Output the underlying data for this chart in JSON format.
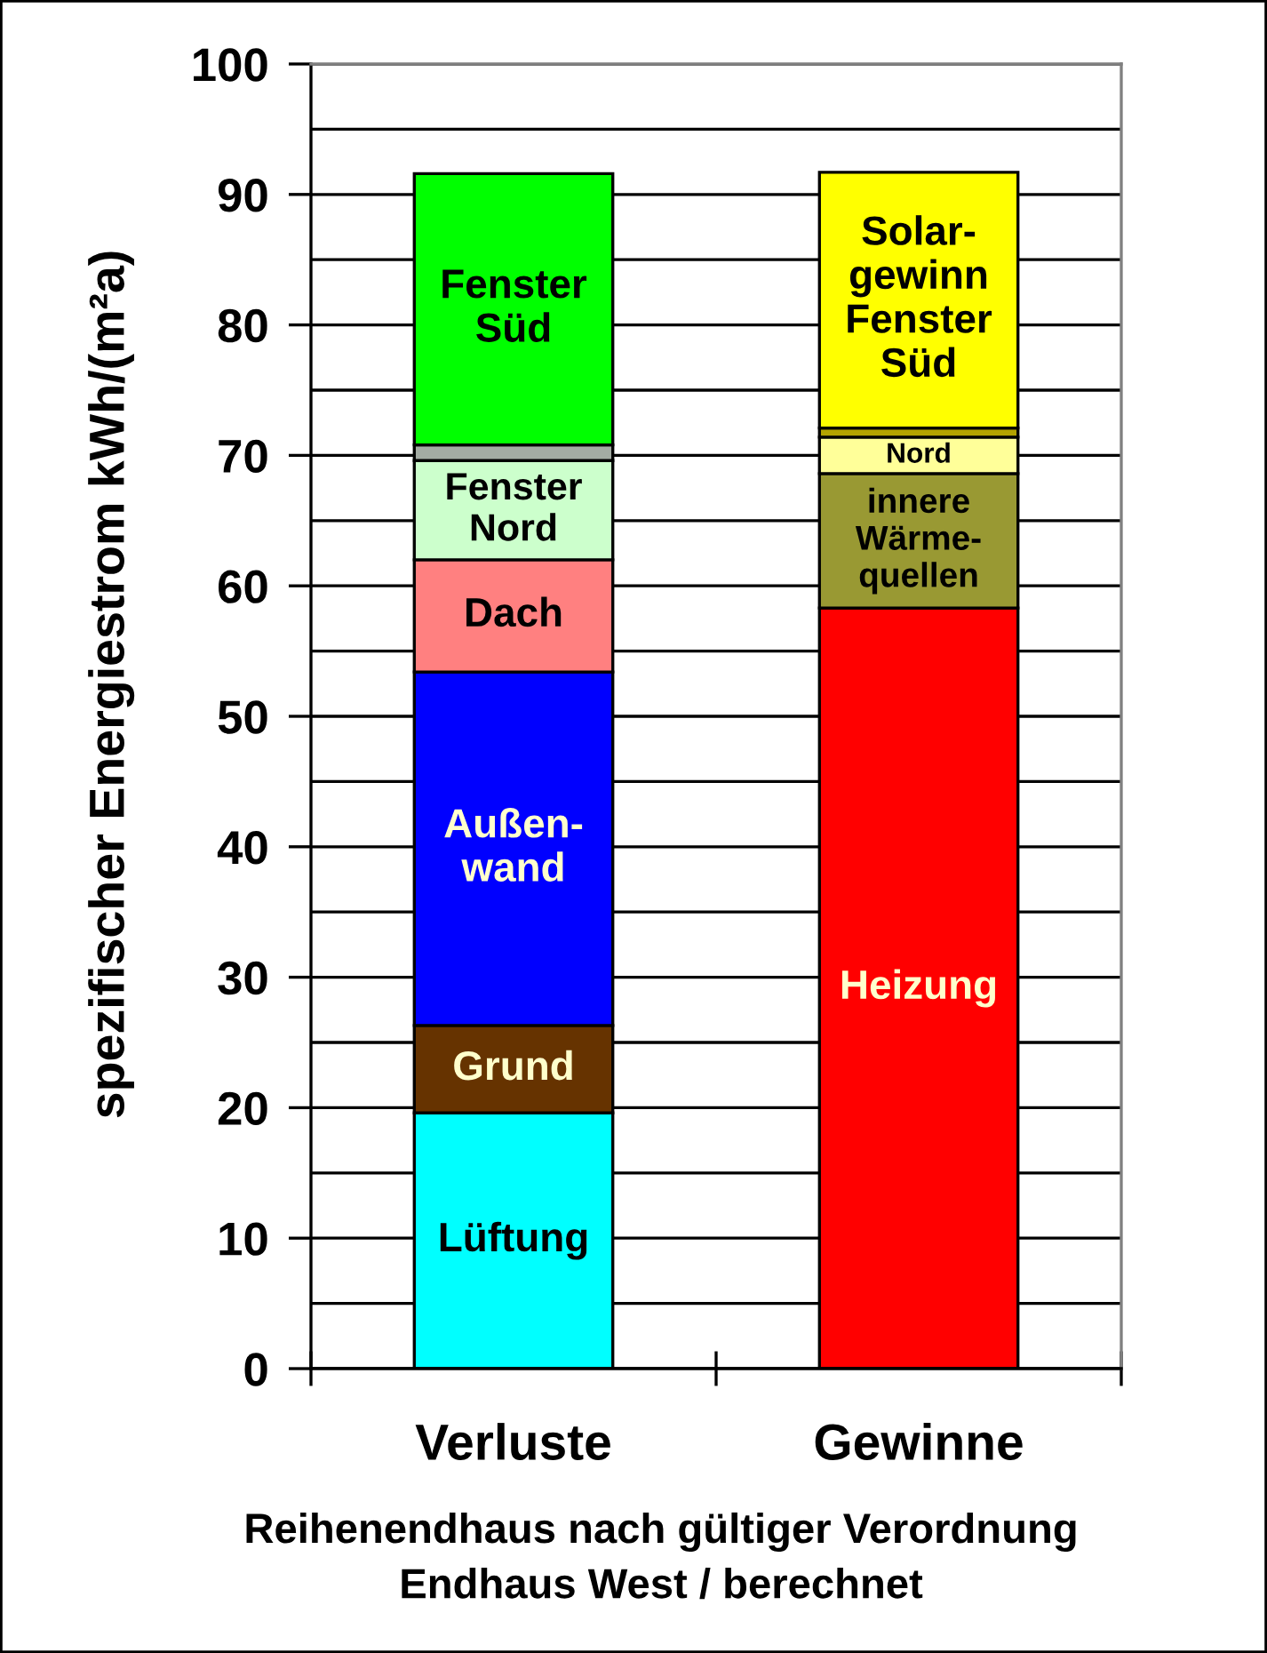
{
  "chart_data": {
    "type": "bar",
    "stacked": true,
    "categories": [
      "Verluste",
      "Gewinne"
    ],
    "ylabel": "spezifischer Energiestrom kWh/(m²a)",
    "ylim": [
      0,
      100
    ],
    "yticks": [
      0,
      {
        "value": 5,
        "label": null
      },
      10,
      {
        "value": 15,
        "label": null
      },
      20,
      {
        "value": 25,
        "label": null
      },
      30,
      {
        "value": 35,
        "label": null
      },
      40,
      {
        "value": 45,
        "label": null
      },
      50,
      {
        "value": 55,
        "label": null
      },
      60,
      {
        "value": 65,
        "label": null
      },
      70,
      {
        "value": 75,
        "label": null
      },
      80,
      {
        "value": 85,
        "label": null
      },
      90,
      {
        "value": 95,
        "label": null
      },
      100
    ],
    "grid": "y",
    "annotations": [
      "Reihenendhaus nach gültiger Verordnung",
      "Endhaus West / berechnet"
    ],
    "series": [
      {
        "name": "Lüftung",
        "color": "#00ffff",
        "values": [
          19.6,
          null
        ]
      },
      {
        "name": "Grund",
        "color": "#663300",
        "values": [
          6.7,
          null
        ]
      },
      {
        "name": "Außen-\nwand",
        "color": "#0000ff",
        "values": [
          27.1,
          null
        ]
      },
      {
        "name": "Dach",
        "color": "#ff8080",
        "values": [
          8.6,
          null
        ]
      },
      {
        "name": "Fenster\nNord",
        "color": "#ccffcc",
        "values": [
          7.6,
          null
        ]
      },
      {
        "color": "#a3aba3",
        "values": [
          1.2,
          null
        ]
      },
      {
        "name": "Fenster\nSüd",
        "color": "#00ff00",
        "values": [
          20.8,
          null
        ]
      },
      {
        "name": "Heizung",
        "color": "#ff0000",
        "values": [
          null,
          58.3
        ]
      },
      {
        "name": "innere\nWärme-\nquellen",
        "color": "#999933",
        "values": [
          null,
          10.3
        ]
      },
      {
        "name": "Nord",
        "color": "#ffff99",
        "values": [
          null,
          2.8
        ]
      },
      {
        "color": "#b3a300",
        "values": [
          null,
          0.7
        ]
      },
      {
        "name": "Solar-\ngewinn\nFenster\nSüd",
        "color": "#ffff00",
        "values": [
          null,
          19.6
        ]
      }
    ]
  }
}
